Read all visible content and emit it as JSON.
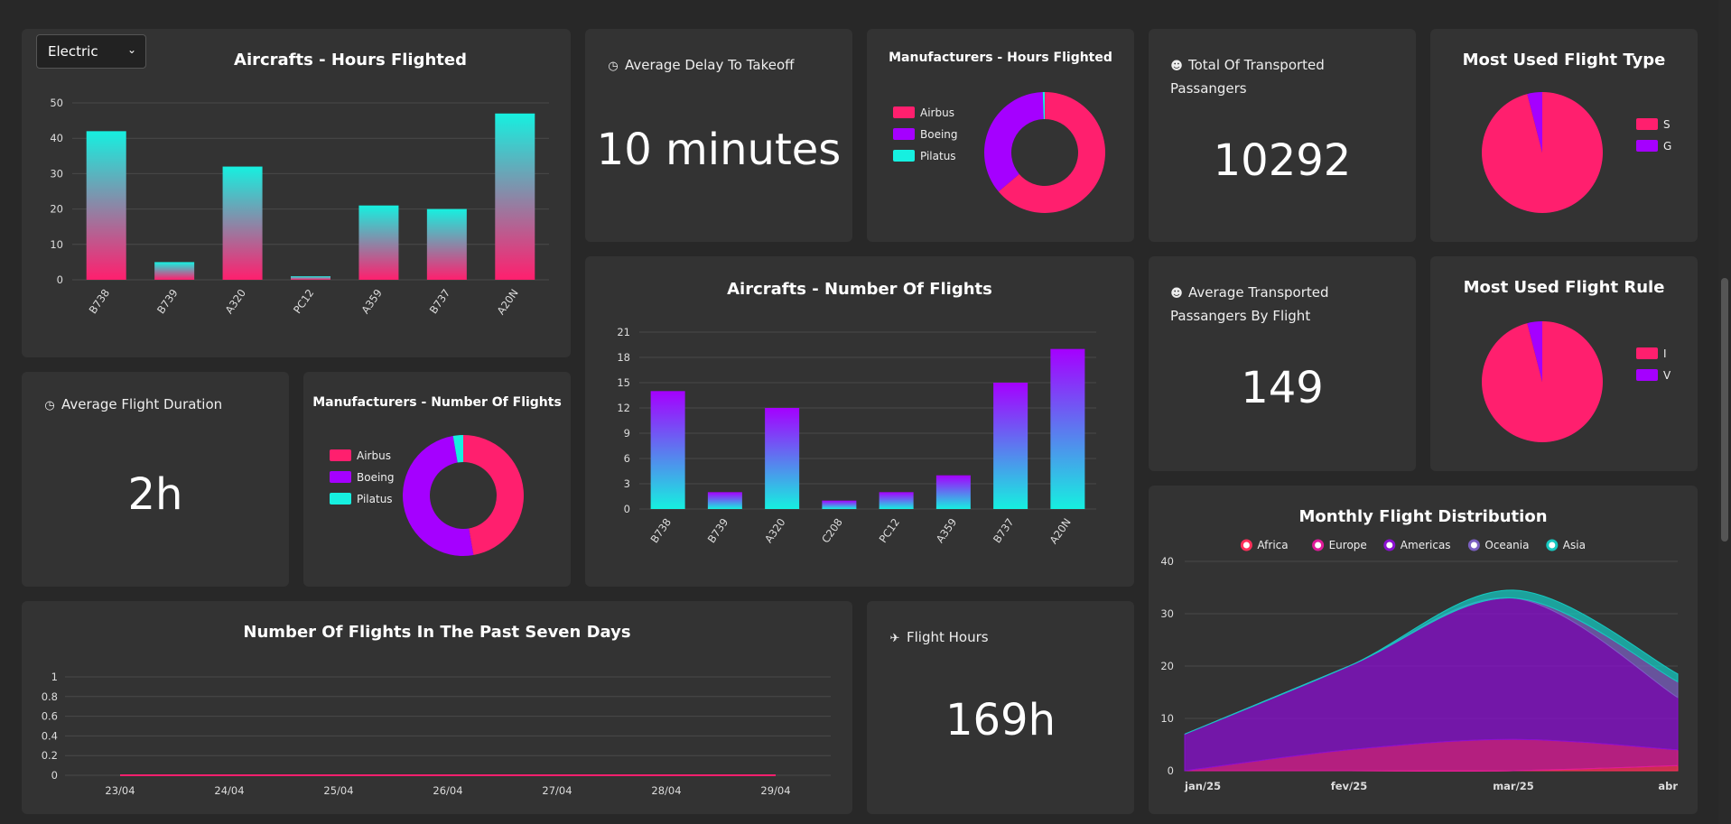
{
  "filter": {
    "selected": "Electric"
  },
  "cards": {
    "hours_flighted": {
      "title": "Aircrafts - Hours Flighted"
    },
    "avg_delay": {
      "icon": "clock-icon",
      "label": "Average Delay To Takeoff",
      "value": "10 minutes"
    },
    "mfr_hours": {
      "title": "Manufacturers - Hours Flighted"
    },
    "total_pax": {
      "icon": "person-icon",
      "label": "Total Of Transported Passangers",
      "value": "10292"
    },
    "flight_type": {
      "title": "Most Used Flight Type"
    },
    "avg_duration": {
      "icon": "clock-icon",
      "label": "Average Flight Duration",
      "value": "2h"
    },
    "mfr_flights": {
      "title": "Manufacturers - Number Of Flights"
    },
    "num_flights": {
      "title": "Aircrafts - Number Of Flights"
    },
    "avg_pax": {
      "icon": "person-icon",
      "label": "Average Transported Passangers By Flight",
      "value": "149"
    },
    "flight_rule": {
      "title": "Most Used Flight Rule"
    },
    "seven_days": {
      "title": "Number Of Flights In The Past Seven Days"
    },
    "flight_hours": {
      "icon": "airplane-icon",
      "label": "Flight Hours",
      "value": "169h"
    },
    "monthly": {
      "title": "Monthly Flight Distribution"
    }
  },
  "colors": {
    "pink": "#ff1f6e",
    "purple": "#a500ff",
    "cyan": "#16f0e0",
    "card": "#333333",
    "bg": "#282828"
  },
  "chart_data": [
    {
      "id": "hours",
      "type": "bar",
      "title": "Aircrafts - Hours Flighted",
      "categories": [
        "B738",
        "B739",
        "A320",
        "PC12",
        "A359",
        "B737",
        "A20N"
      ],
      "values": [
        42,
        5,
        32,
        1,
        21,
        20,
        47
      ],
      "yticks": [
        0,
        10,
        20,
        30,
        40,
        50
      ],
      "ylim": [
        0,
        50
      ],
      "gradient": [
        "#16f0e0",
        "#ff1f6e"
      ]
    },
    {
      "id": "mfr_hours",
      "type": "pie",
      "donut": true,
      "title": "Manufacturers - Hours Flighted",
      "labels": [
        "Airbus",
        "Boeing",
        "Pilatus"
      ],
      "values": [
        120,
        67,
        1
      ],
      "colors": [
        "#ff1f6e",
        "#a500ff",
        "#16f0e0"
      ]
    },
    {
      "id": "flight_type",
      "type": "pie",
      "title": "Most Used Flight Type",
      "labels": [
        "S",
        "G"
      ],
      "values": [
        96,
        4
      ],
      "colors": [
        "#ff1f6e",
        "#a500ff"
      ]
    },
    {
      "id": "mfr_flights",
      "type": "pie",
      "donut": true,
      "title": "Manufacturers - Number Of Flights",
      "labels": [
        "Airbus",
        "Boeing",
        "Pilatus"
      ],
      "values": [
        35,
        37,
        2
      ],
      "colors": [
        "#ff1f6e",
        "#a500ff",
        "#16f0e0"
      ]
    },
    {
      "id": "flights",
      "type": "bar",
      "title": "Aircrafts - Number Of Flights",
      "categories": [
        "B738",
        "B739",
        "A320",
        "C208",
        "PC12",
        "A359",
        "B737",
        "A20N"
      ],
      "values": [
        14,
        2,
        12,
        1,
        2,
        4,
        15,
        19
      ],
      "yticks": [
        0,
        3,
        6,
        9,
        12,
        15,
        18,
        21
      ],
      "ylim": [
        0,
        21
      ],
      "gradient": [
        "#a500ff",
        "#16f0e0"
      ]
    },
    {
      "id": "flight_rule",
      "type": "pie",
      "title": "Most Used Flight Rule",
      "labels": [
        "I",
        "V"
      ],
      "values": [
        96,
        4
      ],
      "colors": [
        "#ff1f6e",
        "#a500ff"
      ]
    },
    {
      "id": "seven",
      "type": "line",
      "title": "Number Of Flights In The Past Seven Days",
      "x": [
        "23/04",
        "24/04",
        "25/04",
        "26/04",
        "27/04",
        "28/04",
        "29/04"
      ],
      "values": [
        0,
        0,
        0,
        0,
        0,
        0,
        0
      ],
      "yticks": [
        "0",
        "0.2",
        "0.4",
        "0.6",
        "0.8",
        "1"
      ],
      "ylim": [
        0,
        1
      ],
      "color": "#ff1f6e"
    },
    {
      "id": "monthly",
      "type": "area",
      "title": "Monthly Flight Distribution",
      "x": [
        "jan/25",
        "fev/25",
        "mar/25",
        "abr"
      ],
      "yticks": [
        0,
        10,
        20,
        30,
        40
      ],
      "ylim": [
        0,
        40
      ],
      "series": [
        {
          "name": "Africa",
          "values": [
            0,
            0,
            0,
            1
          ],
          "color": "#ff2f5a"
        },
        {
          "name": "Europe",
          "values": [
            0,
            4,
            6,
            3
          ],
          "color": "#e01a9a"
        },
        {
          "name": "Americas",
          "values": [
            7,
            16,
            27,
            10
          ],
          "color": "#8a0fd0"
        },
        {
          "name": "Oceania",
          "values": [
            0,
            0,
            0,
            3
          ],
          "color": "#7a5fc0"
        },
        {
          "name": "Asia",
          "values": [
            0,
            0,
            1.5,
            1.5
          ],
          "color": "#16c8c0"
        }
      ]
    }
  ]
}
